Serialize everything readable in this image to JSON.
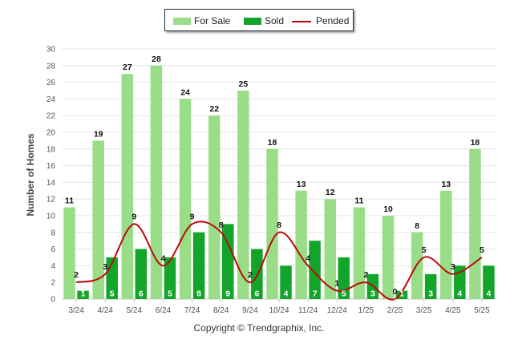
{
  "chart_data": {
    "type": "bar",
    "categories": [
      "3/24",
      "4/24",
      "5/24",
      "6/24",
      "7/24",
      "8/24",
      "9/24",
      "10/24",
      "11/24",
      "12/24",
      "1/25",
      "2/25",
      "3/25",
      "4/25",
      "5/25"
    ],
    "series": [
      {
        "name": "For Sale",
        "type": "bar",
        "color": "#99dd88",
        "values": [
          11,
          19,
          27,
          28,
          24,
          22,
          25,
          18,
          13,
          12,
          11,
          10,
          8,
          13,
          18
        ]
      },
      {
        "name": "Sold",
        "type": "bar",
        "color": "#12a52a",
        "values": [
          1,
          5,
          6,
          5,
          8,
          9,
          6,
          4,
          7,
          5,
          3,
          1,
          3,
          4,
          4
        ]
      },
      {
        "name": "Pended",
        "type": "line",
        "color": "#bb0a0a",
        "values": [
          2,
          3,
          9,
          4,
          9,
          8,
          2,
          8,
          4,
          1,
          2,
          0,
          5,
          3,
          5
        ]
      }
    ],
    "ylabel": "Number of Homes",
    "xlabel": "",
    "ylim": [
      0,
      30
    ],
    "yticks": [
      0,
      2,
      4,
      6,
      8,
      10,
      12,
      14,
      16,
      18,
      20,
      22,
      24,
      26,
      28,
      30
    ],
    "legend_position": "top-center",
    "grid": true
  },
  "legend": {
    "for_sale": "For Sale",
    "sold": "Sold",
    "pended": "Pended"
  },
  "credit": "Copyright © Trendgraphix, Inc."
}
